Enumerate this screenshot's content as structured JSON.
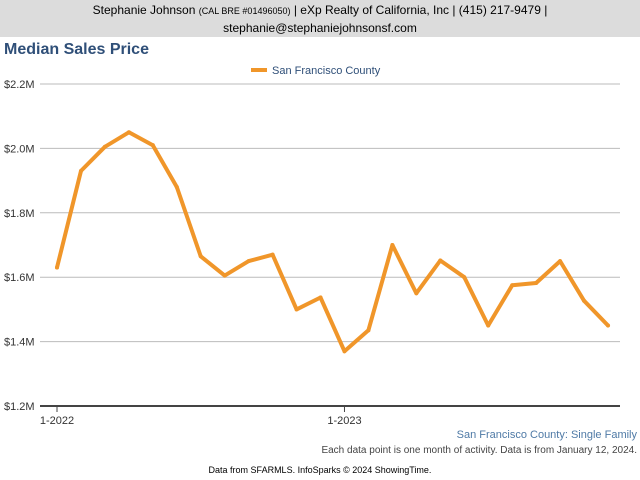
{
  "header": {
    "name": "Stephanie Johnson",
    "license": "(CAL BRE #01496050)",
    "company_phone": "| eXp Realty of California, Inc | (415) 217-9479 |",
    "email": "stephanie@stephaniejohnsonsf.com"
  },
  "subtitle": "San Francisco County: Single Family",
  "note": "Each data point is one month of activity. Data is from January 12, 2024.",
  "footer": "Data from SFARMLS. InfoSparks © 2024 ShowingTime.",
  "colors": {
    "series": "#f0962a",
    "title": "#2f4f78",
    "grid": "#bbbbbb"
  },
  "chart_data": {
    "type": "line",
    "title": "Median Sales Price",
    "series": [
      {
        "name": "San Francisco County",
        "x": [
          "2022-01",
          "2022-02",
          "2022-03",
          "2022-04",
          "2022-05",
          "2022-06",
          "2022-07",
          "2022-08",
          "2022-09",
          "2022-10",
          "2022-11",
          "2022-12",
          "2023-01",
          "2023-02",
          "2023-03",
          "2023-04",
          "2023-05",
          "2023-06",
          "2023-07",
          "2023-08",
          "2023-09",
          "2023-10",
          "2023-11",
          "2023-12"
        ],
        "values": [
          1630000,
          1930000,
          2005000,
          2050000,
          2010000,
          1880000,
          1665000,
          1605000,
          1650000,
          1670000,
          1500000,
          1537000,
          1370000,
          1435000,
          1700000,
          1550000,
          1652000,
          1600000,
          1450000,
          1575000,
          1582000,
          1650000,
          1527000,
          1450000
        ]
      }
    ],
    "ylim": [
      1200000,
      2200000
    ],
    "y_ticks": [
      {
        "value": 1200000,
        "label": "$1.2M"
      },
      {
        "value": 1400000,
        "label": "$1.4M"
      },
      {
        "value": 1600000,
        "label": "$1.6M"
      },
      {
        "value": 1800000,
        "label": "$1.8M"
      },
      {
        "value": 2000000,
        "label": "$2.0M"
      },
      {
        "value": 2200000,
        "label": "$2.2M"
      }
    ],
    "x_ticks": [
      {
        "index": 0,
        "label": "1-2022"
      },
      {
        "index": 12,
        "label": "1-2023"
      }
    ],
    "grid": true,
    "legend_position": "top-center"
  }
}
